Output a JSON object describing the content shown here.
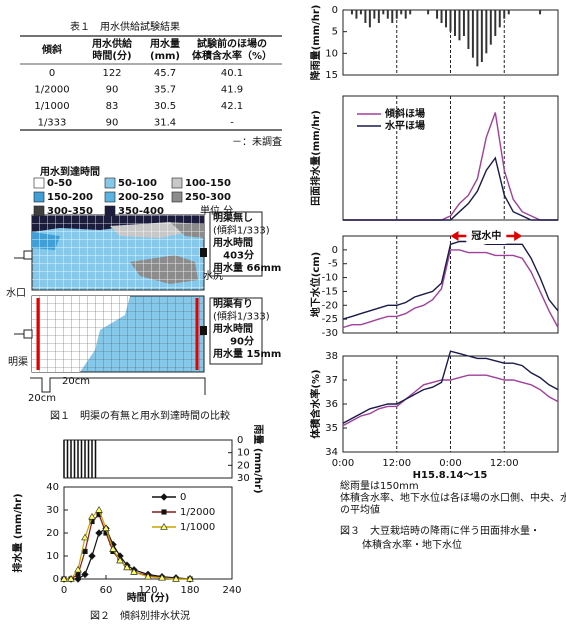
{
  "table": {
    "title": "表１　用水供給試験結果",
    "headers": [
      [
        "傾斜"
      ],
      [
        "用水供給",
        "時間(分)"
      ],
      [
        "用水量",
        "(mm)"
      ],
      [
        "試験前のほ場の",
        "体積含水率（%）"
      ]
    ],
    "rows": [
      [
        "0",
        "122",
        "45.7",
        "40.1"
      ],
      [
        "1/2000",
        "90",
        "35.7",
        "41.9"
      ],
      [
        "1/1000",
        "83",
        "30.5",
        "42.1"
      ],
      [
        "1/333",
        "90",
        "31.4",
        "-"
      ]
    ],
    "note": "－：未調査"
  },
  "figure1": {
    "legend_title": "用水到達時間",
    "legend": [
      {
        "label": "0-50",
        "color": "#ffffff"
      },
      {
        "label": "50-100",
        "color": "#86c8ea"
      },
      {
        "label": "100-150",
        "color": "#c8c8c8"
      },
      {
        "label": "150-200",
        "color": "#3f9fd6"
      },
      {
        "label": "200-250",
        "color": "#5bb3e2"
      },
      {
        "label": "250-300",
        "color": "#8c8c8c"
      },
      {
        "label": "300-350",
        "color": "#404040"
      },
      {
        "label": "350-400",
        "color": "#1c1c3c"
      }
    ],
    "unit": "単位 分",
    "inlet": "水口",
    "outlet": "水尻",
    "drain": "明渠",
    "dim_width": "20cm",
    "dim_depth": "20cm",
    "box_without": [
      "明渠無し",
      "(傾斜1/333)",
      "用水時間",
      "403分",
      "用水量 66mm"
    ],
    "box_with": [
      "明渠有り",
      "(傾斜1/333)",
      "用水時間",
      "90分",
      "用水量 15mm"
    ],
    "caption": "図１　明渠の有無と用水到達時間の比較"
  },
  "chart_data": [
    {
      "type": "bar",
      "ylabel": "雨量 (mm/hr)",
      "y_inverted": true,
      "y_axis_side": "right",
      "xlim": [
        0,
        240
      ],
      "ylim": [
        0,
        30
      ],
      "yticks": [
        0,
        10,
        20,
        30
      ],
      "color": "#111111",
      "x": [
        0,
        5,
        10,
        15,
        20,
        25,
        30,
        35,
        40,
        45
      ],
      "values": [
        30,
        30,
        30,
        30,
        30,
        30,
        30,
        30,
        30,
        30
      ]
    },
    {
      "type": "line",
      "ylabel": "排水量 (mm/hr)",
      "x_label": "時間 (分)",
      "caption": "図２　傾斜別排水状況",
      "xlim": [
        0,
        240
      ],
      "ylim": [
        0,
        40
      ],
      "xticks": [
        0,
        60,
        120,
        180,
        240
      ],
      "yticks": [
        0,
        10,
        20,
        30,
        40
      ],
      "legend": "upper right",
      "x": [
        0,
        10,
        20,
        30,
        40,
        50,
        60,
        70,
        80,
        90,
        100,
        120,
        140,
        160,
        180
      ],
      "series": [
        {
          "name": "0",
          "color": "#111111",
          "marker": "diamond",
          "marker_fill": "#111111",
          "values": [
            0,
            0,
            0,
            2,
            10,
            20,
            22,
            15,
            10,
            6,
            4,
            2,
            1,
            0.5,
            0
          ]
        },
        {
          "name": "1/2000",
          "color": "#8b1a1a",
          "marker": "square",
          "marker_fill": "#111111",
          "values": [
            0,
            0,
            2,
            12,
            25,
            28,
            20,
            12,
            8,
            5,
            3,
            1.5,
            0.5,
            0,
            0
          ]
        },
        {
          "name": "1/1000",
          "color": "#c9a400",
          "marker": "triangle",
          "marker_fill": "#ffff66",
          "values": [
            0,
            0,
            4,
            18,
            27,
            30,
            22,
            13,
            8,
            5,
            3,
            1,
            0.5,
            0,
            0
          ]
        }
      ]
    },
    {
      "type": "bar",
      "ylabel": "降雨量(mm/hr)",
      "y_inverted": true,
      "y_axis_side": "left",
      "grid": true,
      "xlim": [
        0,
        48
      ],
      "ylim": [
        0,
        15
      ],
      "yticks": [
        0,
        5,
        10,
        15
      ],
      "xgrid": [
        12,
        24,
        36
      ],
      "color": "#333333",
      "x": [
        2,
        3,
        4,
        5,
        6,
        7,
        8,
        9,
        10,
        11,
        12,
        13,
        14,
        15,
        19,
        21,
        22,
        23,
        24,
        25,
        26,
        27,
        28,
        29,
        30,
        31,
        32,
        33,
        34,
        35,
        36,
        37,
        44
      ],
      "values": [
        1,
        2,
        1,
        3,
        4,
        2,
        3,
        1,
        2,
        3,
        2,
        1,
        2,
        1,
        1,
        2,
        3,
        4,
        5,
        6,
        7,
        6,
        9,
        11,
        13,
        12,
        10,
        8,
        6,
        4,
        2,
        1,
        1
      ]
    },
    {
      "type": "line",
      "ylabel": "田面排水量(mm/hr)",
      "grid": true,
      "legend": "upper left",
      "xlim": [
        0,
        48
      ],
      "ylim": [
        0,
        0.3
      ],
      "xgrid": [
        12,
        24,
        36
      ],
      "x": [
        0,
        2,
        4,
        6,
        8,
        10,
        12,
        14,
        16,
        18,
        20,
        22,
        24,
        26,
        28,
        30,
        32,
        34,
        36,
        38,
        40,
        42,
        44,
        46,
        48
      ],
      "series": [
        {
          "name": "傾斜ほ場",
          "color": "#a0409a",
          "values": [
            0,
            0,
            0,
            0,
            0,
            0,
            0,
            0,
            0,
            0,
            0,
            0,
            0.01,
            0.04,
            0.06,
            0.1,
            0.2,
            0.26,
            0.12,
            0.05,
            0.02,
            0.01,
            0,
            0,
            0
          ]
        },
        {
          "name": "水平ほ場",
          "color": "#1a1a4a",
          "values": [
            0,
            0,
            0,
            0,
            0,
            0,
            0,
            0,
            0,
            0,
            0,
            0,
            0,
            0.02,
            0.04,
            0.07,
            0.12,
            0.15,
            0.06,
            0.02,
            0.01,
            0,
            0,
            0,
            0
          ]
        }
      ]
    },
    {
      "type": "line",
      "ylabel": "地下水位(cm)",
      "grid": true,
      "xlim": [
        0,
        48
      ],
      "ylim": [
        -30,
        5
      ],
      "yticks": [
        0,
        -5,
        -10,
        -15,
        -20,
        -25,
        -30
      ],
      "xgrid": [
        12,
        24,
        36
      ],
      "annotation": {
        "text": "冠水中",
        "x_range": [
          24,
          40
        ],
        "color": "#e00000"
      },
      "x": [
        0,
        2,
        4,
        6,
        8,
        10,
        12,
        14,
        16,
        18,
        20,
        22,
        24,
        26,
        28,
        30,
        32,
        34,
        36,
        38,
        40,
        42,
        44,
        46,
        48
      ],
      "series": [
        {
          "name": "傾斜ほ場",
          "color": "#a0409a",
          "values": [
            -28,
            -27,
            -27,
            -26,
            -25,
            -24,
            -24,
            -23,
            -21,
            -20,
            -18,
            -14,
            0,
            0,
            -1,
            -1,
            -1,
            -2,
            -2,
            -2,
            -3,
            -8,
            -15,
            -22,
            -28
          ]
        },
        {
          "name": "水平ほ場",
          "color": "#1a1a4a",
          "values": [
            -25,
            -24,
            -23,
            -22,
            -21,
            -20,
            -20,
            -19,
            -17,
            -16,
            -15,
            -12,
            2,
            3,
            3,
            3,
            2,
            2,
            2,
            2,
            2,
            -3,
            -10,
            -18,
            -22
          ]
        }
      ]
    },
    {
      "type": "line",
      "ylabel": "体積含水率(%)",
      "grid": true,
      "x_label": "H15.8.14～15",
      "notes": [
        "総雨量は150mm",
        "体積含水率、地下水位は各ほ場の水口側、中央、水尻側",
        "の平均値"
      ],
      "caption": [
        "図３　大豆栽培時の降雨に伴う田面排水量・",
        "体積含水率・地下水位"
      ],
      "xlim": [
        0,
        48
      ],
      "ylim": [
        34,
        38
      ],
      "yticks": [
        34,
        35,
        36,
        37,
        38
      ],
      "xticks": [
        {
          "value": 0,
          "label": "0:00"
        },
        {
          "value": 12,
          "label": "12:00"
        },
        {
          "value": 24,
          "label": "0:00"
        },
        {
          "value": 36,
          "label": "12:00"
        }
      ],
      "x": [
        0,
        2,
        4,
        6,
        8,
        10,
        12,
        14,
        16,
        18,
        20,
        22,
        24,
        26,
        28,
        30,
        32,
        34,
        36,
        38,
        40,
        42,
        44,
        46,
        48
      ],
      "series": [
        {
          "name": "傾斜ほ場",
          "color": "#a0409a",
          "values": [
            35.1,
            35.3,
            35.5,
            35.6,
            35.8,
            35.9,
            35.9,
            36.2,
            36.5,
            36.8,
            36.9,
            37.0,
            37.0,
            37.1,
            37.2,
            37.2,
            37.2,
            37.1,
            37.0,
            37.0,
            36.9,
            36.8,
            36.6,
            36.3,
            36.1
          ]
        },
        {
          "name": "水平ほ場",
          "color": "#1a1a4a",
          "values": [
            35.2,
            35.4,
            35.6,
            35.8,
            35.9,
            36.0,
            36.0,
            36.2,
            36.4,
            36.6,
            36.7,
            36.9,
            38.2,
            38.1,
            38.0,
            37.9,
            37.9,
            37.8,
            37.7,
            37.7,
            37.6,
            37.3,
            37.1,
            36.8,
            36.6
          ]
        }
      ]
    }
  ]
}
